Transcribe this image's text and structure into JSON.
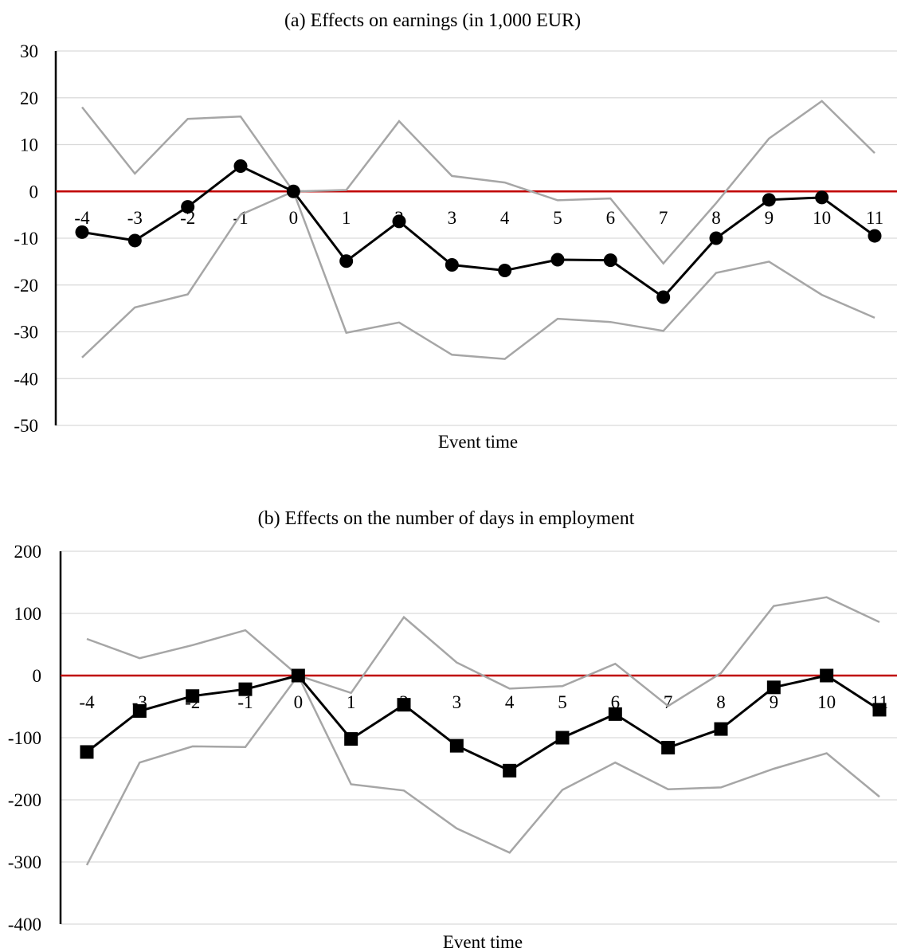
{
  "colors": {
    "estimate": "#000000",
    "confidence_band": "#a6a6a6",
    "zero_line": "#c00000",
    "gridline": "#d9d9d9"
  },
  "chart_data": [
    {
      "type": "line",
      "title": "(a) Effects on earnings (in 1,000 EUR)",
      "xlabel": "Event time",
      "ylabel": "",
      "ylim": [
        -50,
        30
      ],
      "yticks": [
        "30",
        "20",
        "10",
        "0",
        "-10",
        "-20",
        "-30",
        "-40",
        "-50"
      ],
      "categories": [
        "-4",
        "-3",
        "-2",
        "-1",
        "0",
        "1",
        "2",
        "3",
        "4",
        "5",
        "6",
        "7",
        "8",
        "9",
        "10",
        "11"
      ],
      "grid": true,
      "marker": "circle",
      "series": [
        {
          "role": "estimate",
          "values": [
            -8.7,
            -10.5,
            -3.3,
            5.4,
            0,
            -14.9,
            -6.4,
            -15.7,
            -16.9,
            -14.6,
            -14.7,
            -22.6,
            -10.0,
            -1.8,
            -1.3,
            -9.5
          ]
        },
        {
          "role": "upper",
          "values": [
            18.0,
            3.8,
            15.5,
            16.0,
            0,
            0.3,
            15.0,
            3.3,
            1.9,
            -1.9,
            -1.5,
            -15.4,
            -2.5,
            11.3,
            19.3,
            8.2
          ]
        },
        {
          "role": "lower",
          "values": [
            -35.5,
            -24.8,
            -22.0,
            -5.0,
            0,
            -30.2,
            -28.0,
            -34.9,
            -35.8,
            -27.2,
            -27.9,
            -29.8,
            -17.4,
            -15.0,
            -22.1,
            -27.0
          ]
        }
      ]
    },
    {
      "type": "line",
      "title": "(b) Effects on the number of days in employment",
      "xlabel": "Event time",
      "ylabel": "",
      "ylim": [
        -400,
        200
      ],
      "yticks": [
        "200",
        "100",
        "0",
        "-100",
        "-200",
        "-300",
        "-400"
      ],
      "categories": [
        "-4",
        "-3",
        "-2",
        "-1",
        "0",
        "1",
        "2",
        "3",
        "4",
        "5",
        "6",
        "7",
        "8",
        "9",
        "10",
        "11"
      ],
      "grid": true,
      "marker": "square",
      "series": [
        {
          "role": "estimate",
          "values": [
            -123,
            -57,
            -33,
            -22,
            0,
            -102,
            -47,
            -113,
            -153,
            -100,
            -62,
            -116,
            -86,
            -19,
            0,
            -55
          ]
        },
        {
          "role": "upper",
          "values": [
            59,
            28,
            49,
            73,
            0,
            -28,
            94,
            21,
            -21,
            -17,
            19,
            -49,
            4,
            112,
            126,
            86
          ]
        },
        {
          "role": "lower",
          "values": [
            -305,
            -140,
            -114,
            -115,
            0,
            -175,
            -185,
            -246,
            -285,
            -184,
            -140,
            -183,
            -180,
            -150,
            -125,
            -195
          ]
        }
      ]
    }
  ]
}
